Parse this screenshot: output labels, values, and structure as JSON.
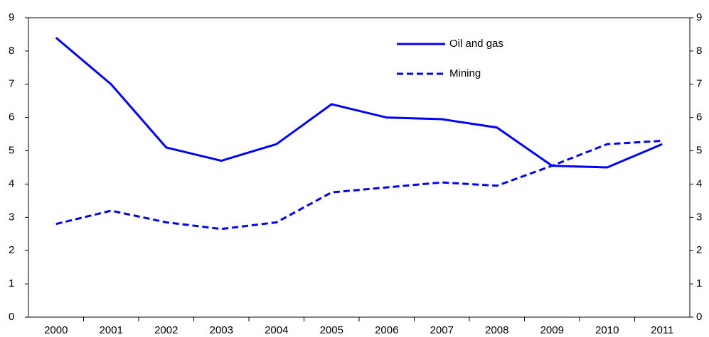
{
  "chart_data": {
    "type": "line",
    "categories": [
      "2000",
      "2001",
      "2002",
      "2003",
      "2004",
      "2005",
      "2006",
      "2007",
      "2008",
      "2009",
      "2010",
      "2011"
    ],
    "series": [
      {
        "name": "Oil and gas",
        "color": "#0000ff",
        "dash": "solid",
        "values": [
          8.4,
          7.0,
          5.1,
          4.7,
          5.2,
          6.4,
          6.0,
          5.95,
          5.7,
          4.55,
          4.5,
          5.2
        ]
      },
      {
        "name": "Mining",
        "color": "#0000ff",
        "dash": "dashed",
        "values": [
          2.8,
          3.2,
          2.85,
          2.65,
          2.85,
          3.75,
          3.9,
          4.05,
          3.95,
          4.55,
          5.2,
          5.3
        ]
      }
    ],
    "ylim": [
      0,
      9
    ],
    "yticks": [
      0,
      1,
      2,
      3,
      4,
      5,
      6,
      7,
      8,
      9
    ],
    "y2lim": [
      0,
      9
    ],
    "y2ticks": [
      0,
      1,
      2,
      3,
      4,
      5,
      6,
      7,
      8,
      9
    ],
    "legend": "upper right",
    "grid": false
  }
}
